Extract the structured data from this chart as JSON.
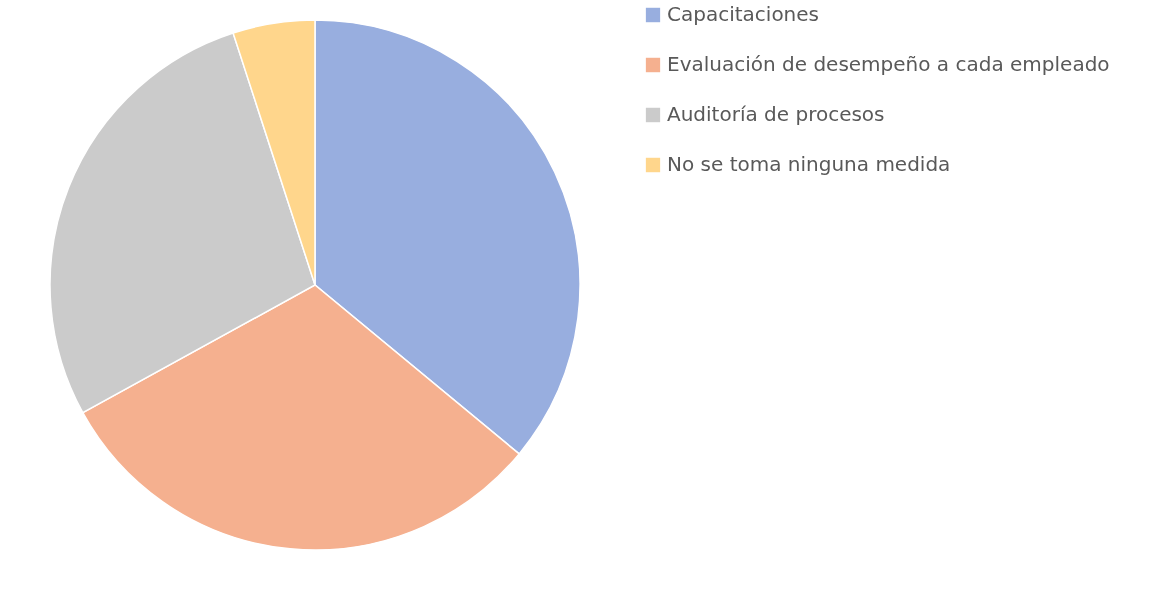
{
  "chart_data": {
    "type": "pie",
    "categories": [
      "Capacitaciones",
      "Evaluación de desempeño a cada empleado",
      "Auditoría de procesos",
      "No se toma ninguna medida"
    ],
    "values": [
      36,
      31,
      28,
      5
    ],
    "colors": [
      "#98aedf",
      "#f5b08f",
      "#cbcbcb",
      "#ffd68c"
    ],
    "legend": "right"
  }
}
